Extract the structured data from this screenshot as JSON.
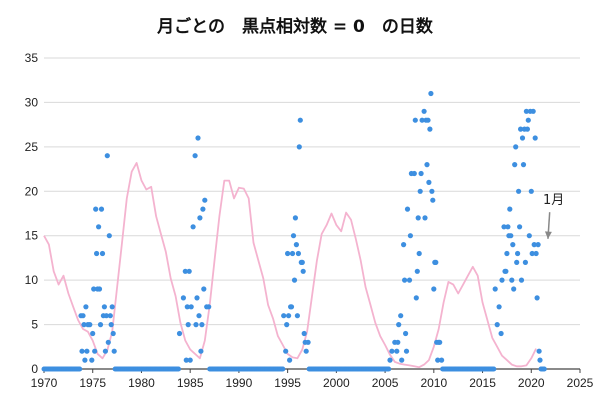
{
  "chart_data": {
    "type": "scatter",
    "title": "月ごとの　黒点相対数 = 0　の日数",
    "xlabel": "",
    "ylabel": "",
    "xlim": [
      1970,
      2025
    ],
    "ylim": [
      0,
      35
    ],
    "x_ticks": [
      1970,
      1975,
      1980,
      1985,
      1990,
      1995,
      2000,
      2005,
      2010,
      2015,
      2020,
      2025
    ],
    "y_ticks": [
      0,
      5,
      10,
      15,
      20,
      25,
      30,
      35
    ],
    "grid": "horizontal",
    "colors": {
      "points": "#3d8fe0",
      "line": "#f4b3cf",
      "grid": "#d9d9d9",
      "axis": "#444444",
      "arrow": "#888888"
    },
    "series": [
      {
        "type": "scatter",
        "points": [
          [
            1973.8,
            6
          ],
          [
            1973.9,
            2
          ],
          [
            1974.0,
            6
          ],
          [
            1974.1,
            5
          ],
          [
            1974.2,
            1
          ],
          [
            1974.3,
            7
          ],
          [
            1974.4,
            2
          ],
          [
            1974.5,
            5
          ],
          [
            1974.7,
            5
          ],
          [
            1974.9,
            1
          ],
          [
            1975.0,
            4
          ],
          [
            1975.1,
            9
          ],
          [
            1975.2,
            2
          ],
          [
            1975.3,
            18
          ],
          [
            1975.4,
            13
          ],
          [
            1975.5,
            9
          ],
          [
            1975.6,
            16
          ],
          [
            1975.7,
            9
          ],
          [
            1975.8,
            5
          ],
          [
            1975.9,
            18
          ],
          [
            1976.0,
            13
          ],
          [
            1976.1,
            6
          ],
          [
            1976.2,
            7
          ],
          [
            1976.3,
            2
          ],
          [
            1976.4,
            6
          ],
          [
            1976.5,
            24
          ],
          [
            1976.6,
            3
          ],
          [
            1976.7,
            15
          ],
          [
            1976.8,
            6
          ],
          [
            1976.9,
            5
          ],
          [
            1977.0,
            7
          ],
          [
            1977.1,
            4
          ],
          [
            1977.2,
            2
          ],
          [
            1983.9,
            4
          ],
          [
            1984.3,
            8
          ],
          [
            1984.5,
            11
          ],
          [
            1984.6,
            1
          ],
          [
            1984.7,
            7
          ],
          [
            1984.8,
            5
          ],
          [
            1984.9,
            11
          ],
          [
            1985.0,
            1
          ],
          [
            1985.1,
            7
          ],
          [
            1985.3,
            16
          ],
          [
            1985.5,
            24
          ],
          [
            1985.6,
            5
          ],
          [
            1985.7,
            8
          ],
          [
            1985.8,
            26
          ],
          [
            1985.9,
            6
          ],
          [
            1986.0,
            17
          ],
          [
            1986.1,
            2
          ],
          [
            1986.2,
            5
          ],
          [
            1986.3,
            18
          ],
          [
            1986.4,
            9
          ],
          [
            1986.5,
            19
          ],
          [
            1986.7,
            7
          ],
          [
            1986.9,
            7
          ],
          [
            1994.6,
            6
          ],
          [
            1994.8,
            2
          ],
          [
            1994.9,
            5
          ],
          [
            1995.0,
            13
          ],
          [
            1995.1,
            6
          ],
          [
            1995.2,
            1
          ],
          [
            1995.3,
            7
          ],
          [
            1995.4,
            7
          ],
          [
            1995.5,
            13
          ],
          [
            1995.6,
            15
          ],
          [
            1995.7,
            10
          ],
          [
            1995.8,
            17
          ],
          [
            1995.9,
            14
          ],
          [
            1996.0,
            6
          ],
          [
            1996.1,
            13
          ],
          [
            1996.2,
            25
          ],
          [
            1996.3,
            28
          ],
          [
            1996.4,
            12
          ],
          [
            1996.5,
            12
          ],
          [
            1996.6,
            11
          ],
          [
            1996.7,
            4
          ],
          [
            1996.8,
            3
          ],
          [
            1996.9,
            2
          ],
          [
            1997.1,
            3
          ],
          [
            2005.5,
            1
          ],
          [
            2005.7,
            2
          ],
          [
            2006.0,
            3
          ],
          [
            2006.2,
            2
          ],
          [
            2006.3,
            3
          ],
          [
            2006.4,
            5
          ],
          [
            2006.6,
            6
          ],
          [
            2006.7,
            1
          ],
          [
            2006.9,
            14
          ],
          [
            2007.0,
            10
          ],
          [
            2007.1,
            4
          ],
          [
            2007.2,
            2
          ],
          [
            2007.3,
            18
          ],
          [
            2007.5,
            10
          ],
          [
            2007.6,
            15
          ],
          [
            2007.7,
            22
          ],
          [
            2008.0,
            22
          ],
          [
            2008.1,
            28
          ],
          [
            2008.2,
            8
          ],
          [
            2008.3,
            11
          ],
          [
            2008.4,
            17
          ],
          [
            2008.5,
            13
          ],
          [
            2008.6,
            20
          ],
          [
            2008.7,
            22
          ],
          [
            2008.8,
            28
          ],
          [
            2009.0,
            29
          ],
          [
            2009.1,
            17
          ],
          [
            2009.2,
            28
          ],
          [
            2009.3,
            23
          ],
          [
            2009.4,
            28
          ],
          [
            2009.5,
            21
          ],
          [
            2009.6,
            27
          ],
          [
            2009.7,
            31
          ],
          [
            2009.8,
            20
          ],
          [
            2009.9,
            19
          ],
          [
            2010.0,
            9
          ],
          [
            2010.1,
            12
          ],
          [
            2010.2,
            12
          ],
          [
            2010.3,
            3
          ],
          [
            2010.4,
            1
          ],
          [
            2010.5,
            3
          ],
          [
            2010.6,
            3
          ],
          [
            2010.8,
            1
          ],
          [
            2016.3,
            9
          ],
          [
            2016.5,
            5
          ],
          [
            2016.7,
            7
          ],
          [
            2016.9,
            4
          ],
          [
            2017.0,
            10
          ],
          [
            2017.2,
            16
          ],
          [
            2017.3,
            11
          ],
          [
            2017.4,
            11
          ],
          [
            2017.5,
            13
          ],
          [
            2017.6,
            16
          ],
          [
            2017.7,
            15
          ],
          [
            2017.8,
            18
          ],
          [
            2017.9,
            15
          ],
          [
            2018.0,
            10
          ],
          [
            2018.1,
            14
          ],
          [
            2018.2,
            9
          ],
          [
            2018.3,
            23
          ],
          [
            2018.4,
            25
          ],
          [
            2018.5,
            12
          ],
          [
            2018.6,
            13
          ],
          [
            2018.7,
            20
          ],
          [
            2018.8,
            16
          ],
          [
            2018.9,
            27
          ],
          [
            2019.0,
            10
          ],
          [
            2019.1,
            26
          ],
          [
            2019.2,
            23
          ],
          [
            2019.3,
            27
          ],
          [
            2019.4,
            12
          ],
          [
            2019.5,
            29
          ],
          [
            2019.6,
            27
          ],
          [
            2019.7,
            28
          ],
          [
            2019.8,
            15
          ],
          [
            2019.9,
            29
          ],
          [
            2020.0,
            20
          ],
          [
            2020.1,
            13
          ],
          [
            2020.2,
            29
          ],
          [
            2020.3,
            14
          ],
          [
            2020.4,
            26
          ],
          [
            2020.5,
            13
          ],
          [
            2020.6,
            8
          ],
          [
            2020.7,
            14
          ],
          [
            2020.8,
            2
          ],
          [
            2020.9,
            1
          ]
        ],
        "zero_ranges": [
          [
            1970.0,
            1973.7
          ],
          [
            1977.3,
            1983.8
          ],
          [
            1987.0,
            1994.5
          ],
          [
            1997.2,
            2005.4
          ],
          [
            2010.9,
            2016.2
          ],
          [
            2021.0,
            2021.4
          ]
        ]
      },
      {
        "type": "line",
        "description_units": "sunspot number scaled to the y-axis",
        "x": [
          1970,
          1970.5,
          1971,
          1971.5,
          1972,
          1972.5,
          1973,
          1973.5,
          1974,
          1974.5,
          1975,
          1975.5,
          1976,
          1976.5,
          1977,
          1977.5,
          1978,
          1978.5,
          1979,
          1979.5,
          1980,
          1980.5,
          1981,
          1981.5,
          1982,
          1982.5,
          1983,
          1983.5,
          1984,
          1984.5,
          1985,
          1985.5,
          1986,
          1986.5,
          1987,
          1987.5,
          1988,
          1988.5,
          1989,
          1989.5,
          1990,
          1990.5,
          1991,
          1991.5,
          1992,
          1992.5,
          1993,
          1993.5,
          1994,
          1994.5,
          1995,
          1995.5,
          1996,
          1996.5,
          1997,
          1997.5,
          1998,
          1998.5,
          1999,
          1999.5,
          2000,
          2000.5,
          2001,
          2001.5,
          2002,
          2002.5,
          2003,
          2003.5,
          2004,
          2004.5,
          2005,
          2005.5,
          2006,
          2006.5,
          2007,
          2007.5,
          2008,
          2008.5,
          2009,
          2009.5,
          2010,
          2010.5,
          2011,
          2011.5,
          2012,
          2012.5,
          2013,
          2013.5,
          2014,
          2014.5,
          2015,
          2015.5,
          2016,
          2016.5,
          2017,
          2017.5,
          2018,
          2018.5,
          2019,
          2019.5,
          2020,
          2020.5
        ],
        "y": [
          15,
          14,
          11,
          9.5,
          10.5,
          8.5,
          7,
          5.5,
          4.5,
          4.2,
          3.2,
          1.7,
          1.2,
          2.1,
          4.2,
          9.2,
          14.2,
          19.2,
          22.2,
          23.2,
          21.2,
          20.2,
          20.5,
          17.2,
          15.2,
          13.2,
          10.2,
          8.2,
          5.2,
          3.2,
          2.2,
          1.7,
          1.2,
          3.2,
          7.2,
          12.2,
          17.2,
          21.2,
          21.2,
          19.2,
          20.4,
          20.3,
          19.2,
          14.2,
          12.2,
          10.2,
          7.2,
          5.7,
          3.7,
          2.7,
          1.7,
          1.3,
          1.2,
          2.2,
          4.2,
          8.2,
          12.2,
          15.2,
          16.2,
          17.5,
          16.2,
          15.5,
          17.6,
          16.8,
          14.6,
          12.2,
          9.2,
          7.2,
          5.2,
          3.7,
          2.7,
          1.6,
          0.8,
          0.6,
          0.5,
          0.4,
          0.3,
          0.2,
          0.5,
          1.0,
          2.5,
          4.5,
          7.5,
          9.8,
          9.5,
          8.5,
          9.5,
          10.5,
          11.5,
          10.5,
          7.5,
          5.5,
          3.5,
          2.5,
          1.5,
          1.0,
          0.5,
          0.3,
          0.3,
          0.4,
          1.2,
          2.3
        ]
      }
    ],
    "annotations": [
      {
        "text": "1月",
        "x": 2022.3,
        "y": 19,
        "arrow_to": [
          2021.3,
          14.2
        ]
      }
    ]
  }
}
